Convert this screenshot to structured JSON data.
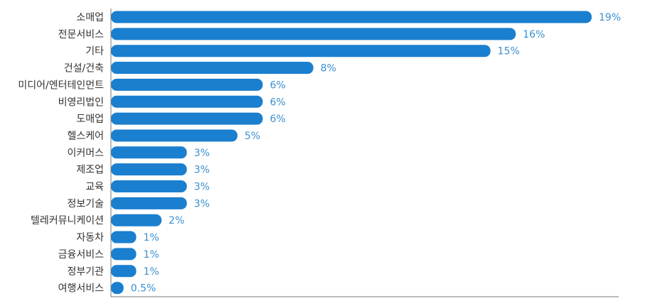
{
  "chart_data": {
    "type": "bar",
    "orientation": "horizontal",
    "title": "",
    "xlabel": "",
    "ylabel": "",
    "categories": [
      "소매업",
      "전문서비스",
      "기타",
      "건설/건축",
      "미디어/엔터테인먼트",
      "비영리법인",
      "도매업",
      "헬스케어",
      "이커머스",
      "제조업",
      "교육",
      "정보기술",
      "텔레커뮤니케이션",
      "자동차",
      "금융서비스",
      "정부기관",
      "여행서비스"
    ],
    "values": [
      19,
      16,
      15,
      8,
      6,
      6,
      6,
      5,
      3,
      3,
      3,
      3,
      2,
      1,
      1,
      1,
      0.5
    ],
    "value_labels": [
      "19%",
      "16%",
      "15%",
      "8%",
      "6%",
      "6%",
      "6%",
      "5%",
      "3%",
      "3%",
      "3%",
      "3%",
      "2%",
      "1%",
      "1%",
      "1%",
      "0.5%"
    ],
    "xlim": [
      0,
      20
    ],
    "grid": false,
    "legend": "none",
    "bar_color": "#1a7fcf",
    "label_color": "#3a8fd0"
  }
}
